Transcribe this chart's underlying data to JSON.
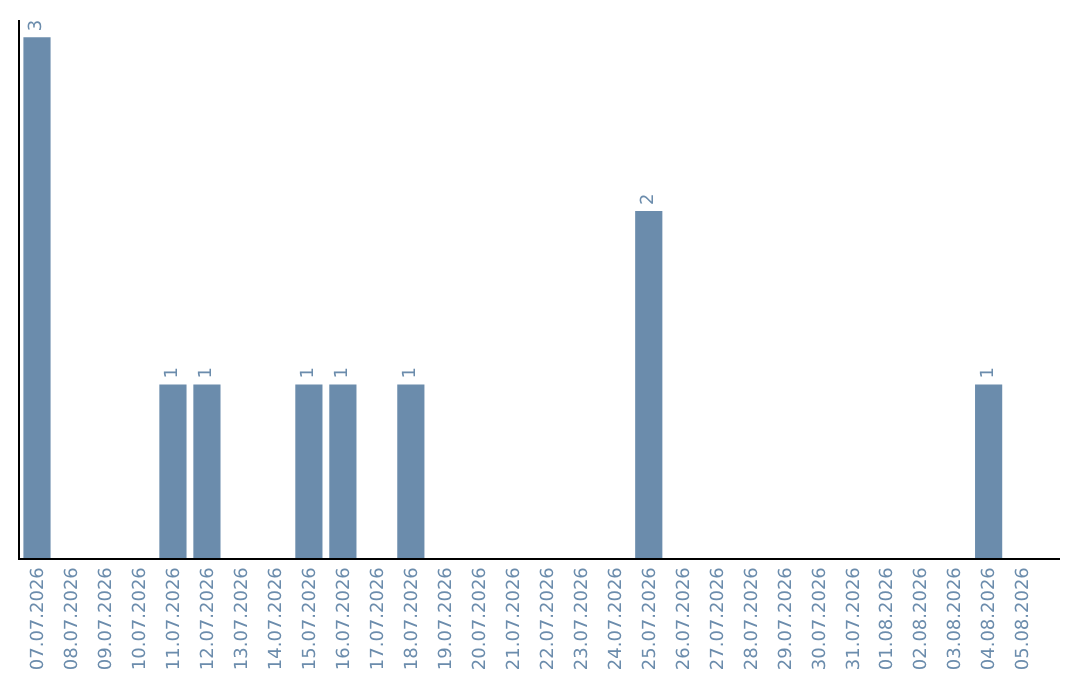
{
  "chart_data": {
    "type": "bar",
    "categories": [
      "07.07.2026",
      "08.07.2026",
      "09.07.2026",
      "10.07.2026",
      "11.07.2026",
      "12.07.2026",
      "13.07.2026",
      "14.07.2026",
      "15.07.2026",
      "16.07.2026",
      "17.07.2026",
      "18.07.2026",
      "19.07.2026",
      "20.07.2026",
      "21.07.2026",
      "22.07.2026",
      "23.07.2026",
      "24.07.2026",
      "25.07.2026",
      "26.07.2026",
      "27.07.2026",
      "28.07.2026",
      "29.07.2026",
      "30.07.2026",
      "31.07.2026",
      "01.08.2026",
      "02.08.2026",
      "03.08.2026",
      "04.08.2026",
      "05.08.2026"
    ],
    "values": [
      3,
      0,
      0,
      0,
      1,
      1,
      0,
      0,
      1,
      1,
      0,
      1,
      0,
      0,
      0,
      0,
      0,
      0,
      2,
      0,
      0,
      0,
      0,
      0,
      0,
      0,
      0,
      0,
      1,
      0
    ],
    "value_labels": [
      "3",
      null,
      null,
      null,
      "1",
      "1",
      null,
      null,
      "1",
      "1",
      null,
      "1",
      null,
      null,
      null,
      null,
      null,
      null,
      "2",
      null,
      null,
      null,
      null,
      null,
      null,
      null,
      null,
      null,
      "1",
      null
    ],
    "color": "#6b8cac",
    "ylim": [
      0,
      3.1
    ],
    "tick_labels": "x",
    "legend": false
  }
}
